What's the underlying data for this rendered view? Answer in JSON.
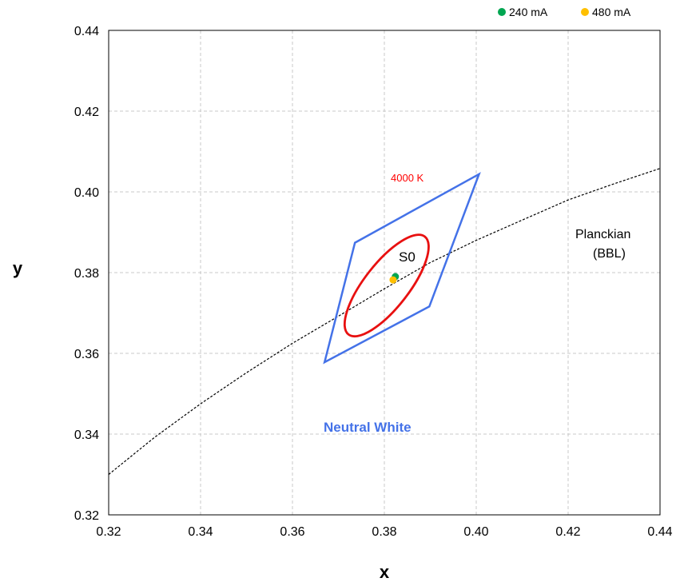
{
  "chart_data": {
    "type": "scatter",
    "xlabel": "x",
    "ylabel": "y",
    "xlim": [
      0.32,
      0.44
    ],
    "ylim": [
      0.32,
      0.44
    ],
    "x_ticks": [
      0.32,
      0.34,
      0.36,
      0.38,
      0.4,
      0.42,
      0.44
    ],
    "y_ticks": [
      0.32,
      0.34,
      0.36,
      0.38,
      0.4,
      0.42,
      0.44
    ],
    "x_tick_labels": [
      "0.32",
      "0.34",
      "0.36",
      "0.38",
      "0.40",
      "0.42",
      "0.44"
    ],
    "y_tick_labels": [
      "0.32",
      "0.34",
      "0.36",
      "0.38",
      "0.40",
      "0.42",
      "0.44"
    ],
    "grid": true,
    "legend_position": "top-right",
    "series": [
      {
        "name": "240 mA",
        "color": "#00a651",
        "points": [
          [
            0.3824,
            0.379
          ]
        ]
      },
      {
        "name": "480 mA",
        "color": "#ffc000",
        "points": [
          [
            0.3819,
            0.3782
          ]
        ]
      }
    ],
    "planckian": {
      "label_line1": "Planckian",
      "label_line2": "(BBL)",
      "color": "#000000",
      "style": "dotted",
      "points": [
        [
          0.32,
          0.33
        ],
        [
          0.33,
          0.3392
        ],
        [
          0.34,
          0.3475
        ],
        [
          0.35,
          0.3552
        ],
        [
          0.36,
          0.3625
        ],
        [
          0.37,
          0.3692
        ],
        [
          0.38,
          0.376
        ],
        [
          0.39,
          0.3825
        ],
        [
          0.4,
          0.388
        ],
        [
          0.41,
          0.393
        ],
        [
          0.42,
          0.398
        ],
        [
          0.43,
          0.402
        ],
        [
          0.44,
          0.4058
        ]
      ]
    },
    "quadrangle": {
      "label": "Neutral White",
      "color": "#4472e8",
      "vertices": [
        [
          0.3736,
          0.3874
        ],
        [
          0.4006,
          0.4044
        ],
        [
          0.3898,
          0.3716
        ],
        [
          0.367,
          0.3578
        ]
      ]
    },
    "ellipse": {
      "label": "S0",
      "color": "#e81010",
      "center": [
        0.3805,
        0.3768
      ],
      "semi_axis_a": 0.0135,
      "semi_axis_b": 0.0055,
      "angle_deg": 52
    },
    "annotations": {
      "cct_label": "4000 K",
      "cct_color": "#ff0000"
    }
  }
}
